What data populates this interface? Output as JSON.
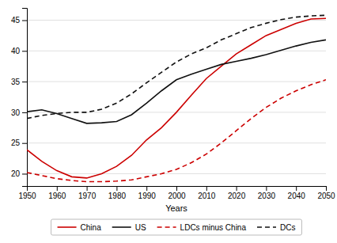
{
  "chart_data": {
    "type": "line",
    "xlabel": "Years",
    "x": [
      1950,
      1955,
      1960,
      1965,
      1970,
      1975,
      1980,
      1985,
      1990,
      1995,
      2000,
      2005,
      2010,
      2015,
      2020,
      2025,
      2030,
      2035,
      2040,
      2045,
      2050
    ],
    "series": [
      {
        "name": "China",
        "color": "#cc0000",
        "line_style": "solid",
        "values": [
          23.9,
          22.0,
          20.5,
          19.5,
          19.3,
          20.0,
          21.2,
          23.0,
          25.5,
          27.5,
          30.0,
          32.8,
          35.5,
          37.5,
          39.5,
          41.0,
          42.5,
          43.5,
          44.5,
          45.2,
          45.3
        ]
      },
      {
        "name": "US",
        "color": "#111111",
        "line_style": "solid",
        "values": [
          30.1,
          30.4,
          29.8,
          29.0,
          28.2,
          28.3,
          28.5,
          29.6,
          31.5,
          33.5,
          35.3,
          36.2,
          37.0,
          37.8,
          38.3,
          38.8,
          39.4,
          40.1,
          40.8,
          41.4,
          41.8
        ]
      },
      {
        "name": "LDCs minus China",
        "color": "#cc0000",
        "line_style": "dashed",
        "values": [
          20.2,
          19.7,
          19.2,
          18.9,
          18.7,
          18.7,
          18.8,
          19.0,
          19.5,
          20.0,
          20.7,
          21.8,
          23.2,
          25.0,
          27.0,
          29.0,
          30.8,
          32.3,
          33.5,
          34.5,
          35.3
        ]
      },
      {
        "name": "DCs",
        "color": "#111111",
        "line_style": "dashed",
        "values": [
          29.0,
          29.5,
          29.8,
          30.0,
          30.0,
          30.5,
          31.5,
          33.0,
          34.8,
          36.5,
          38.2,
          39.5,
          40.5,
          41.8,
          42.8,
          43.8,
          44.5,
          45.1,
          45.5,
          45.7,
          45.8
        ]
      }
    ],
    "xlim": [
      1950,
      2050
    ],
    "ylim": [
      18,
      47
    ],
    "xticks": [
      1950,
      1960,
      1970,
      1980,
      1990,
      2000,
      2010,
      2020,
      2030,
      2040,
      2050
    ],
    "yticks": [
      20,
      25,
      30,
      35,
      40,
      45
    ],
    "grid": true,
    "legend": "bottom"
  }
}
